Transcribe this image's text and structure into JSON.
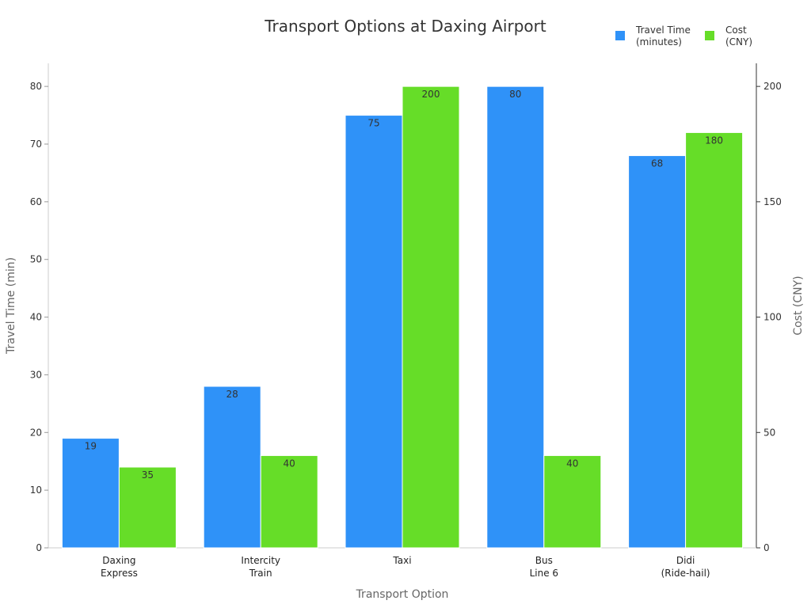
{
  "chart_data": {
    "type": "bar",
    "title": "Transport Options at Daxing Airport",
    "xlabel": "Transport Option",
    "ylabel_left": "Travel Time (min)",
    "ylabel_right": "Cost (CNY)",
    "categories": [
      [
        "Daxing",
        "Express"
      ],
      [
        "Intercity",
        "Train"
      ],
      [
        "Taxi"
      ],
      [
        "Bus",
        "Line 6"
      ],
      [
        "Didi",
        "(Ride-hail)"
      ]
    ],
    "series": [
      {
        "name_lines": [
          "Travel Time",
          "(minutes)"
        ],
        "axis": "left",
        "color": "#2f92f8",
        "values": [
          19,
          28,
          75,
          80,
          68
        ]
      },
      {
        "name_lines": [
          "Cost",
          "(CNY)"
        ],
        "axis": "right",
        "color": "#66dd28",
        "values": [
          35,
          40,
          200,
          40,
          180
        ]
      }
    ],
    "ylim_left": [
      0,
      84
    ],
    "yticks_left": [
      0,
      10,
      20,
      30,
      40,
      50,
      60,
      70,
      80
    ],
    "ylim_right": [
      0,
      210
    ],
    "yticks_right": [
      0,
      50,
      100,
      150,
      200
    ],
    "grid": false,
    "legend_position": "top-right"
  }
}
